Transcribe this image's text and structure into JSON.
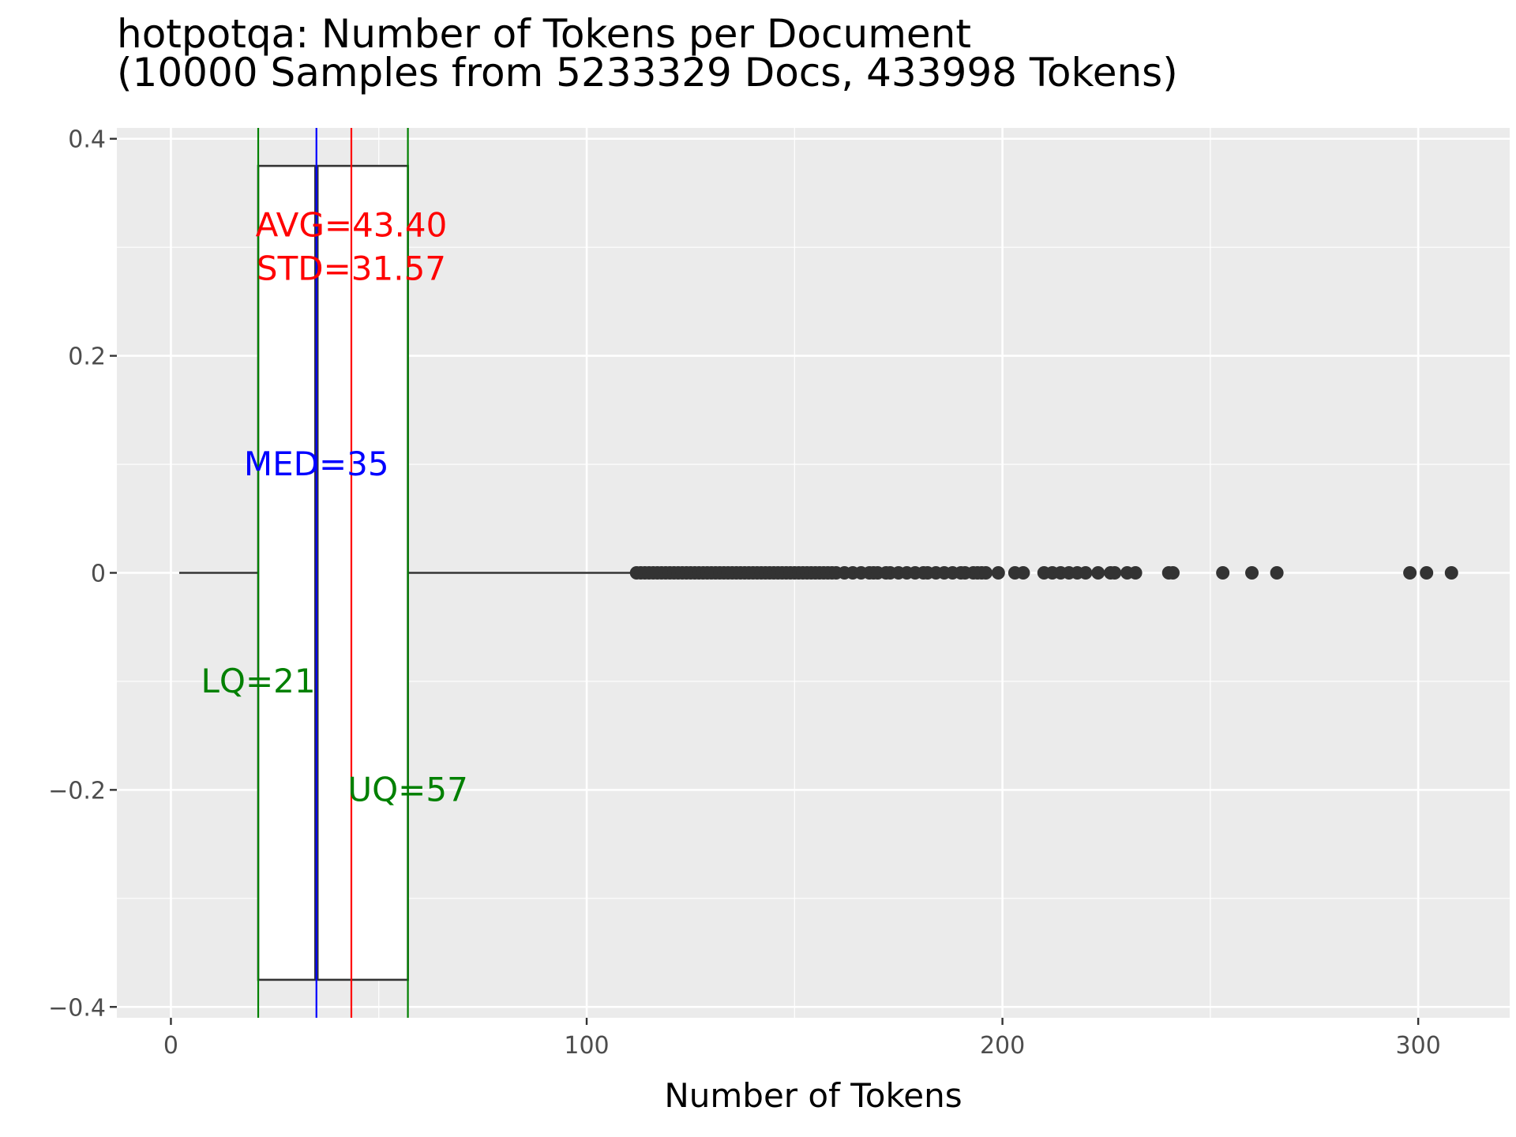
{
  "chart_data": {
    "type": "boxplot",
    "title": "hotpotqa: Number of Tokens per Document",
    "subtitle": "(10000 Samples from 5233329 Docs, 433998 Tokens)",
    "xlabel": "Number of Tokens",
    "ylabel": "",
    "xlim": [
      -13,
      322
    ],
    "ylim": [
      -0.41,
      0.41
    ],
    "x_ticks": [
      0,
      100,
      200,
      300
    ],
    "x_tick_labels": [
      "0",
      "100",
      "200",
      "300"
    ],
    "y_ticks": [
      0.4,
      0.2,
      0,
      -0.2,
      -0.4
    ],
    "y_tick_labels": [
      "0.4",
      "0.2",
      "0",
      "−0.2",
      "−0.4"
    ],
    "grid": true,
    "box": {
      "whisker_low": 2,
      "lower_quartile": 21,
      "median": 35,
      "upper_quartile": 57,
      "whisker_high": 111,
      "y_top": 0.375,
      "y_bottom": -0.375
    },
    "outliers_x": [
      112,
      113,
      114,
      115,
      116,
      117,
      118,
      119,
      120,
      121,
      122,
      123,
      124,
      125,
      126,
      127,
      128,
      129,
      130,
      131,
      132,
      133,
      134,
      135,
      136,
      137,
      138,
      139,
      140,
      141,
      142,
      143,
      144,
      145,
      146,
      147,
      148,
      149,
      150,
      151,
      152,
      153,
      154,
      155,
      156,
      157,
      158,
      159,
      160,
      162,
      164,
      166,
      168,
      169,
      170,
      172,
      173,
      175,
      177,
      179,
      181,
      182,
      184,
      186,
      188,
      190,
      191,
      193,
      194,
      195,
      196,
      199,
      203,
      205,
      210,
      212,
      214,
      216,
      218,
      220,
      223,
      226,
      227,
      230,
      232,
      240,
      241,
      253,
      260,
      266,
      298,
      302,
      308
    ],
    "lines": [
      {
        "name": "AVG",
        "x": 43.4,
        "color": "#ff0000"
      },
      {
        "name": "MED",
        "x": 35,
        "color": "#0000ff"
      },
      {
        "name": "LQ",
        "x": 21,
        "color": "#008000"
      },
      {
        "name": "UQ",
        "x": 57,
        "color": "#008000"
      }
    ],
    "annotations": [
      {
        "text": "AVG=43.40",
        "x": 43.4,
        "y": 0.32,
        "color": "#ff0000"
      },
      {
        "text": "STD=31.57",
        "x": 43.4,
        "y": 0.28,
        "color": "#ff0000"
      },
      {
        "text": "MED=35",
        "x": 35,
        "y": 0.1,
        "color": "#0000ff"
      },
      {
        "text": "LQ=21",
        "x": 21,
        "y": -0.1,
        "color": "#008000"
      },
      {
        "text": "UQ=57",
        "x": 57,
        "y": -0.2,
        "color": "#008000"
      }
    ],
    "colors": {
      "panel_bg": "#ebebeb",
      "grid": "#ffffff",
      "box_line": "#333333",
      "outlier": "#333333",
      "tick_text": "#4d4d4d"
    }
  }
}
